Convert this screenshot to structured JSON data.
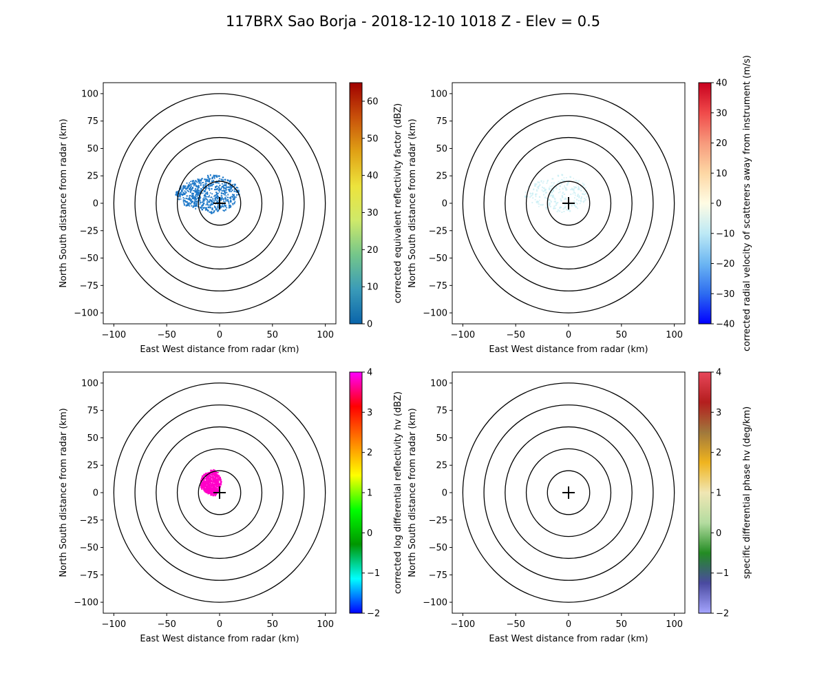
{
  "figure": {
    "title": "117BRX Sao Borja - 2018-12-10 1018 Z -  Elev = 0.5"
  },
  "chart_data": [
    {
      "type": "heatmap",
      "title": "",
      "xlabel": "East West distance from radar (km)",
      "ylabel": "North South distance from radar (km)",
      "xlim": [
        -110,
        110
      ],
      "ylim": [
        -110,
        110
      ],
      "xticks": [
        -100,
        -50,
        0,
        50,
        100
      ],
      "yticks": [
        -100,
        -75,
        -50,
        -25,
        0,
        25,
        50,
        75,
        100
      ],
      "range_rings_km": [
        20,
        40,
        60,
        80,
        100
      ],
      "colorbar": {
        "label": "corrected equivalent reflectivity factor (dBZ)",
        "range": [
          0,
          65
        ],
        "ticks": [
          0,
          10,
          20,
          30,
          40,
          50,
          60
        ],
        "colors": [
          "#0a64aa",
          "#3a9bb8",
          "#74c68a",
          "#cfe96a",
          "#ede33c",
          "#e0a115",
          "#c8500a",
          "#a00000"
        ]
      },
      "echo": {
        "color": "#1e78c8",
        "extent_km": [
          -38,
          22,
          -9,
          27
        ]
      }
    },
    {
      "type": "heatmap",
      "title": "",
      "xlabel": "East West distance from radar (km)",
      "ylabel": "North South distance from radar (km)",
      "xlim": [
        -110,
        110
      ],
      "ylim": [
        -110,
        110
      ],
      "xticks": [
        -100,
        -50,
        0,
        50,
        100
      ],
      "yticks": [
        -100,
        -75,
        -50,
        -25,
        0,
        25,
        50,
        75,
        100
      ],
      "range_rings_km": [
        20,
        40,
        60,
        80,
        100
      ],
      "colorbar": {
        "label": "corrected radial velocity of scatterers away from instrument (m/s)",
        "range": [
          -40,
          40
        ],
        "ticks": [
          -40,
          -30,
          -20,
          -10,
          0,
          10,
          20,
          30,
          40
        ],
        "colors": [
          "#0000ff",
          "#2d6cf0",
          "#6cb6f2",
          "#bde9f5",
          "#fffce4",
          "#fdd7a4",
          "#f79a7c",
          "#f04a4a",
          "#c8001e"
        ]
      },
      "echo": {
        "color": "#c8eef4",
        "extent_km": [
          -38,
          22,
          -9,
          27
        ]
      }
    },
    {
      "type": "heatmap",
      "title": "",
      "xlabel": "East West distance from radar (km)",
      "ylabel": "North South distance from radar (km)",
      "xlim": [
        -110,
        110
      ],
      "ylim": [
        -110,
        110
      ],
      "xticks": [
        -100,
        -50,
        0,
        50,
        100
      ],
      "yticks": [
        -100,
        -75,
        -50,
        -25,
        0,
        25,
        50,
        75,
        100
      ],
      "range_rings_km": [
        20,
        40,
        60,
        80,
        100
      ],
      "colorbar": {
        "label": "corrected log differential reflectivity hv (dBZ)",
        "range": [
          -2,
          4
        ],
        "ticks": [
          -2,
          -1,
          0,
          1,
          2,
          3,
          4
        ],
        "colors": [
          "#0000ff",
          "#00ffff",
          "#009600",
          "#00ff00",
          "#ffff00",
          "#ff8000",
          "#ff0000",
          "#ff00ff"
        ]
      },
      "echo": {
        "color": "#ff00c8",
        "extent_km": [
          -15,
          5,
          -3,
          22
        ]
      }
    },
    {
      "type": "heatmap",
      "title": "",
      "xlabel": "East West distance from radar (km)",
      "ylabel": "North South distance from radar (km)",
      "xlim": [
        -110,
        110
      ],
      "ylim": [
        -110,
        110
      ],
      "xticks": [
        -100,
        -50,
        0,
        50,
        100
      ],
      "yticks": [
        -100,
        -75,
        -50,
        -25,
        0,
        25,
        50,
        75,
        100
      ],
      "range_rings_km": [
        20,
        40,
        60,
        80,
        100
      ],
      "colorbar": {
        "label": "specific differential phase hv (deg/km)",
        "range": [
          -2,
          4
        ],
        "ticks": [
          -2,
          -1,
          0,
          1,
          2,
          3,
          4
        ],
        "colors": [
          "#a5a5ff",
          "#4a4aa0",
          "#238c23",
          "#b4dca0",
          "#f0e6b4",
          "#f0b41e",
          "#a0783c",
          "#b41e1e",
          "#e8465a"
        ]
      },
      "echo": null
    }
  ]
}
